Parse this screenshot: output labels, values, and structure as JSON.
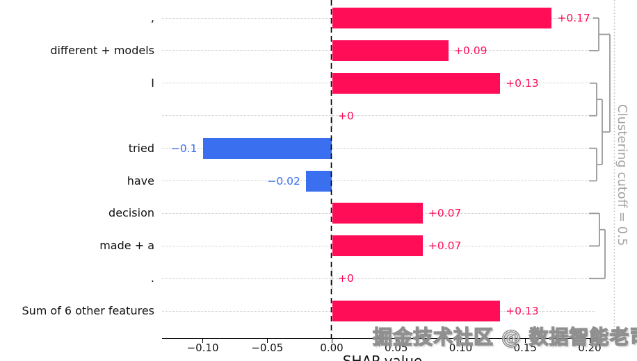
{
  "watermark": {
    "text": "掘金技术社区 @ 数据智能老司机"
  },
  "chart_data": {
    "type": "bar",
    "orientation": "horizontal",
    "title": "",
    "xlabel": "SHAP value",
    "ylabel": "",
    "xlim": [
      -0.131,
      0.206
    ],
    "grid": "horizontal-dotted",
    "cutoff_label": "Clustering cutoff = 0.5",
    "features": [
      {
        "label": ",",
        "value": 0.17,
        "display": "+0.17"
      },
      {
        "label": "different + models",
        "value": 0.09,
        "display": "+0.09"
      },
      {
        "label": "I",
        "value": 0.13,
        "display": "+0.13"
      },
      {
        "label": "",
        "value": 0,
        "display": "+0"
      },
      {
        "label": "tried",
        "value": -0.1,
        "display": "−0.1"
      },
      {
        "label": "have",
        "value": -0.02,
        "display": "−0.02"
      },
      {
        "label": "decision",
        "value": 0.07,
        "display": "+0.07"
      },
      {
        "label": "made + a",
        "value": 0.07,
        "display": "+0.07"
      },
      {
        "label": ".",
        "value": 0,
        "display": "+0"
      },
      {
        "label": "Sum of 6 other features",
        "value": 0.13,
        "display": "+0.13"
      }
    ],
    "x_ticks": [
      {
        "label": "−0.10",
        "value": -0.1
      },
      {
        "label": "−0.05",
        "value": -0.05
      },
      {
        "label": "0.00",
        "value": 0.0
      },
      {
        "label": "0.05",
        "value": 0.05
      },
      {
        "label": "0.10",
        "value": 0.1
      },
      {
        "label": "0.15",
        "value": 0.15
      },
      {
        "label": "0.20",
        "value": 0.2
      }
    ],
    "colors": {
      "positive": "#ff0d57",
      "negative": "#3a6ff0",
      "zero_bar": "#e0e0e0",
      "gridline": "#c9c9c9",
      "dendrogram": "#999999",
      "cutoff_line": "#bbbbbb",
      "cutoff_text": "#a3a3a3",
      "zero_baseline": "#000000"
    },
    "dendrogram": {
      "merges": [
        [
          "row0",
          "row1"
        ],
        [
          "row2",
          "row3"
        ],
        [
          "row4",
          "row5"
        ],
        [
          "(row2,row3)",
          "(row4,row5)"
        ],
        [
          "(row0,row1)",
          "((row2,row3),(row4,row5))"
        ],
        [
          "row6",
          "row7"
        ],
        [
          "(row6,row7)",
          "row8"
        ]
      ],
      "segments": [
        [
          853,
          26.0,
          861,
          26.0
        ],
        [
          861,
          26.0,
          861,
          72.9
        ],
        [
          861,
          72.9,
          847,
          72.9
        ],
        [
          861,
          49.5,
          877,
          49.5
        ],
        [
          877,
          49.5,
          877,
          190.1
        ],
        [
          848,
          119.8,
          858,
          119.8
        ],
        [
          858,
          119.8,
          858,
          166.7
        ],
        [
          858,
          166.7,
          847,
          166.7
        ],
        [
          858,
          143.2,
          866,
          143.2
        ],
        [
          866,
          143.2,
          866,
          237.1
        ],
        [
          847,
          213.6,
          858,
          213.6
        ],
        [
          858,
          213.6,
          858,
          260.5
        ],
        [
          858,
          260.5,
          847,
          260.5
        ],
        [
          858,
          237.1,
          866,
          237.1
        ],
        [
          866,
          190.1,
          877,
          190.1
        ],
        [
          847,
          307.4,
          862,
          307.4
        ],
        [
          862,
          307.4,
          862,
          354.3
        ],
        [
          862,
          354.3,
          847,
          354.3
        ],
        [
          862,
          330.8,
          870,
          330.8
        ],
        [
          870,
          330.8,
          870,
          401.2
        ],
        [
          870,
          401.2,
          847,
          401.2
        ]
      ]
    }
  }
}
